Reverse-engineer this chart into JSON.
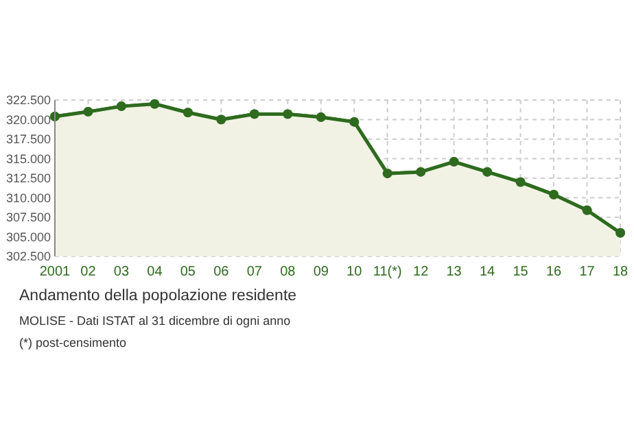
{
  "chart_data": {
    "type": "area",
    "title": "Andamento della popolazione residente",
    "annotations": [
      "MOLISE - Dati ISTAT al 31 dicembre di ogni anno",
      "(*) post-censimento"
    ],
    "categories": [
      "2001",
      "02",
      "03",
      "04",
      "05",
      "06",
      "07",
      "08",
      "09",
      "10",
      "11(*)",
      "12",
      "13",
      "14",
      "15",
      "16",
      "17",
      "18"
    ],
    "series": [
      {
        "color": "#2e6b1e",
        "values": [
          320400,
          321000,
          321700,
          322000,
          320900,
          320000,
          320700,
          320700,
          320300,
          319700,
          313100,
          313300,
          314600,
          313300,
          312000,
          310400,
          308400,
          305500
        ]
      }
    ],
    "ylim": [
      302500,
      322500
    ],
    "yticks": [
      {
        "value": 302500,
        "label": "302.500"
      },
      {
        "value": 305000,
        "label": "305.000"
      },
      {
        "value": 307500,
        "label": "307.500"
      },
      {
        "value": 310000,
        "label": "310.000"
      },
      {
        "value": 312500,
        "label": "312.500"
      },
      {
        "value": 315000,
        "label": "315.000"
      },
      {
        "value": 317500,
        "label": "317.500"
      },
      {
        "value": 320000,
        "label": "320.000"
      },
      {
        "value": 322500,
        "label": "322.500"
      }
    ],
    "grid": true,
    "marker": "circle"
  }
}
